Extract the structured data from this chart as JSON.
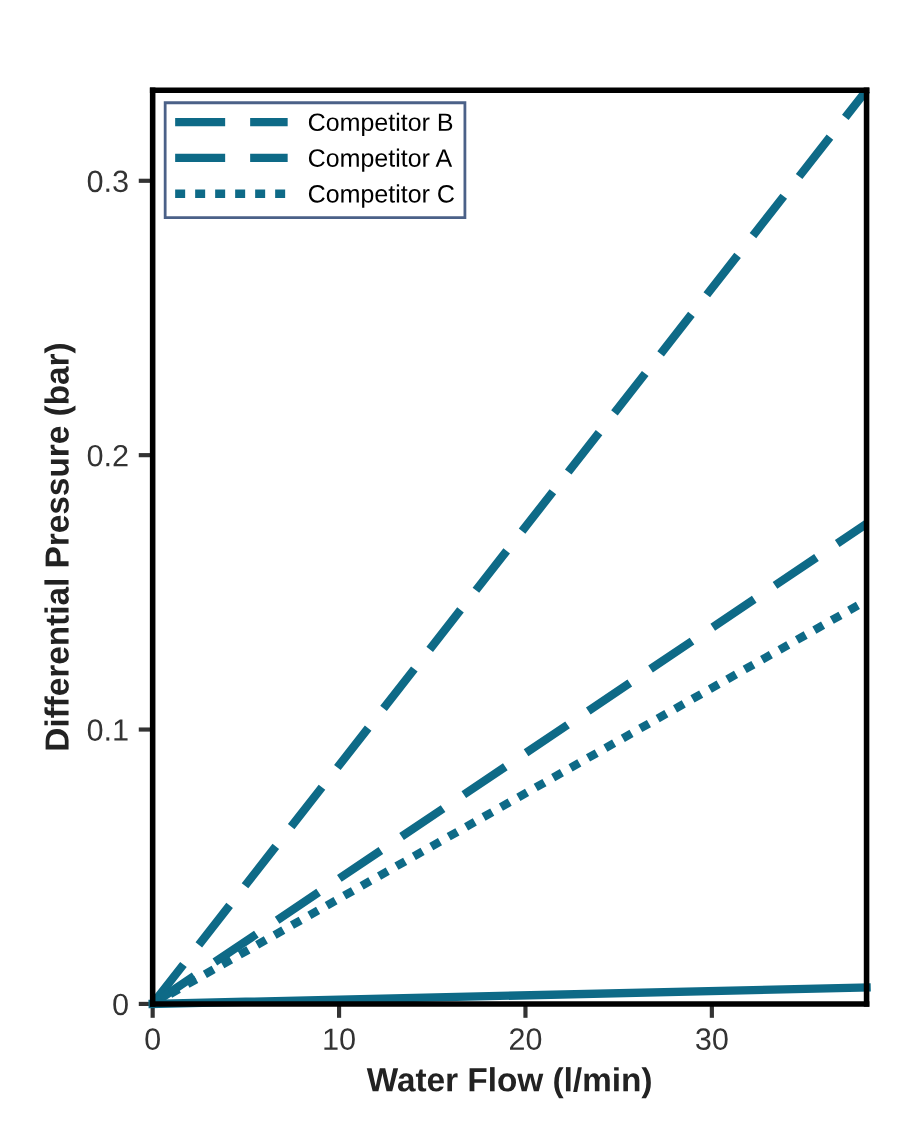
{
  "chart_data": {
    "type": "line",
    "xlabel": "Water Flow (l/min)",
    "ylabel": "Differential Pressure (bar)",
    "xlim": [
      0,
      38.3
    ],
    "ylim": [
      0,
      0.333
    ],
    "xticks": [
      0,
      10,
      20,
      30
    ],
    "yticks": [
      0,
      0.1,
      0.2,
      0.3
    ],
    "grid": false,
    "legend": "top left",
    "marker": "none",
    "x": [
      0,
      38.3
    ],
    "series": [
      {
        "name": "Competitor B",
        "color": "#0e6a87",
        "values": [
          0,
          0.333
        ],
        "line_style": "dashed"
      },
      {
        "name": "Competitor A",
        "color": "#0e6a87",
        "values": [
          0,
          0.175
        ],
        "line_style": "dashed"
      },
      {
        "name": "Competitor C",
        "color": "#0e6a87",
        "values": [
          0,
          0.147
        ],
        "line_style": "dotted"
      },
      {
        "color": "#0e6a87",
        "values": [
          0,
          0.006
        ],
        "line_style": "solid"
      }
    ]
  }
}
